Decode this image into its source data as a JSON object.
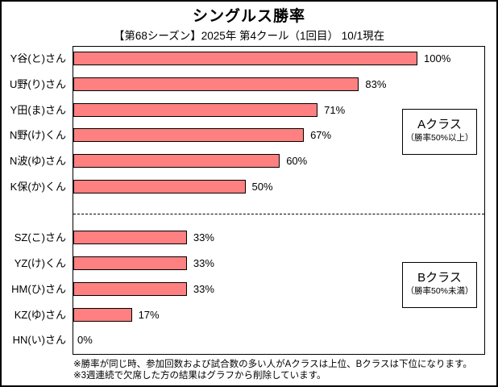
{
  "header": {
    "title": "シングルス勝率",
    "subtitle": "【第68シーズン】2025年 第4クール（1回目） 10/1現在"
  },
  "chart_data": {
    "type": "bar",
    "orientation": "horizontal",
    "title": "シングルス勝率",
    "subtitle": "【第68シーズン】2025年 第4クール（1回目） 10/1現在",
    "categories": [
      "Y谷(と)さん",
      "U野(り)さん",
      "Y田(ま)さん",
      "N野(け)くん",
      "N波(ゆ)さん",
      "K保(か)くん",
      "SZ(こ)さん",
      "YZ(け)くん",
      "HM(ひ)さん",
      "KZ(ゆ)さん",
      "HN(い)さん"
    ],
    "values": [
      100,
      83,
      71,
      67,
      60,
      50,
      33,
      33,
      33,
      17,
      0
    ],
    "value_labels": [
      "100%",
      "83%",
      "71%",
      "67%",
      "60%",
      "50%",
      "33%",
      "33%",
      "33%",
      "17%",
      "0%"
    ],
    "xlabel": "",
    "ylabel": "",
    "xlim": [
      0,
      120
    ],
    "grid": false,
    "legend": "none",
    "bar_color": "#FF8080",
    "bar_border_color": "#000000",
    "group_separator": {
      "after_category_index": 5,
      "style": "dashed"
    },
    "groups": [
      {
        "name": "Aクラス",
        "criterion": "（勝率50%以上）",
        "category_indexes": [
          0,
          1,
          2,
          3,
          4,
          5
        ]
      },
      {
        "name": "Bクラス",
        "criterion": "（勝率50%未満）",
        "category_indexes": [
          6,
          7,
          8,
          9,
          10
        ]
      }
    ]
  },
  "annotations": {
    "class_a_box": {
      "title": "Aクラス",
      "subtitle": "（勝率50%以上）"
    },
    "class_b_box": {
      "title": "Bクラス",
      "subtitle": "（勝率50%未満）"
    }
  },
  "footnotes": {
    "line1": "※勝率が同じ時、参加回数および試合数の多い人がAクラスは上位、Bクラスは下位になります。",
    "line2": "※3週連続で欠席した方の結果はグラフから削除しています。"
  },
  "colors": {
    "background": "#FFFFFF",
    "text": "#000000",
    "bar_fill": "#FF8080",
    "bar_border": "#000000",
    "frame_border": "#000000"
  }
}
